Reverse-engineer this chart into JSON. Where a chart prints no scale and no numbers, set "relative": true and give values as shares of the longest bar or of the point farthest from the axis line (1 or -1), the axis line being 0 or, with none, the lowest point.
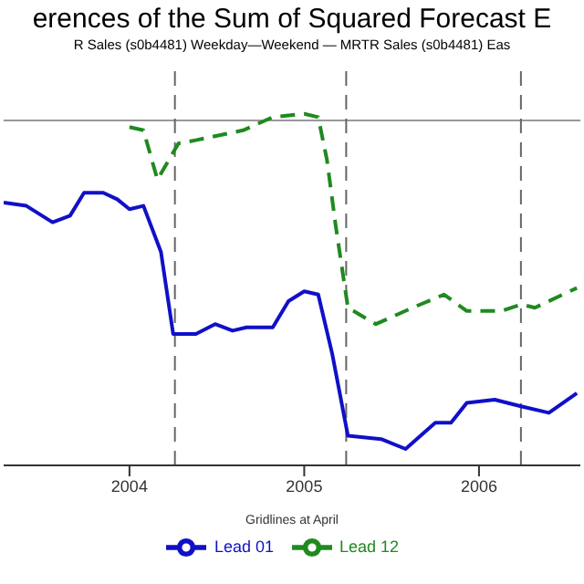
{
  "chart_data": {
    "type": "line",
    "title": "erences of the Sum of Squared Forecast E",
    "subtitle": "R Sales (s0b4481) Weekday—Weekend — MRTR Sales (s0b4481) Eas",
    "xlabel": "Gridlines at April",
    "relative": true,
    "xlim": [
      2003.28,
      2006.58
    ],
    "xticks": [
      2004,
      2005,
      2006
    ],
    "series": [
      {
        "name": "Lead 01",
        "color": "#1010c8",
        "line_style": "solid",
        "x": [
          2003.28,
          2003.41,
          2003.56,
          2003.66,
          2003.74,
          2003.85,
          2003.93,
          2004.0,
          2004.08,
          2004.18,
          2004.25,
          2004.38,
          2004.49,
          2004.59,
          2004.67,
          2004.82,
          2004.91,
          2005.0,
          2005.08,
          2005.16,
          2005.25,
          2005.44,
          2005.58,
          2005.75,
          2005.84,
          2005.93,
          2006.09,
          2006.24,
          2006.4,
          2006.56
        ],
        "values": [
          -0.25,
          -0.26,
          -0.31,
          -0.29,
          -0.22,
          -0.22,
          -0.24,
          -0.27,
          -0.26,
          -0.4,
          -0.65,
          -0.65,
          -0.62,
          -0.64,
          -0.63,
          -0.63,
          -0.55,
          -0.52,
          -0.53,
          -0.71,
          -0.96,
          -0.97,
          -1,
          -0.92,
          -0.92,
          -0.86,
          -0.85,
          -0.87,
          -0.89,
          -0.83
        ]
      },
      {
        "name": "Lead 12",
        "color": "#1f8a1f",
        "line_style": "dashed",
        "x": [
          2004.0,
          2004.08,
          2004.16,
          2004.28,
          2004.38,
          2004.65,
          2004.82,
          2005.0,
          2005.08,
          2005.13,
          2005.18,
          2005.25,
          2005.41,
          2005.62,
          2005.8,
          2005.93,
          2006.13,
          2006.24,
          2006.32,
          2006.56
        ],
        "values": [
          -0.02,
          -0.03,
          -0.18,
          -0.07,
          -0.06,
          -0.03,
          0.01,
          0.02,
          0.01,
          -0.12,
          -0.32,
          -0.57,
          -0.62,
          -0.57,
          -0.53,
          -0.58,
          -0.58,
          -0.56,
          -0.57,
          -0.51
        ]
      }
    ],
    "ref_lines": [
      {
        "axis": "y",
        "value": 0,
        "color": "#999999",
        "line_style": "solid"
      },
      {
        "axis": "x",
        "value": 2004.26,
        "color": "#666666",
        "line_style": "dashed"
      },
      {
        "axis": "x",
        "value": 2005.24,
        "color": "#666666",
        "line_style": "dashed"
      },
      {
        "axis": "x",
        "value": 2006.24,
        "color": "#666666",
        "line_style": "dashed"
      }
    ],
    "grid": false,
    "legend": "bottom",
    "marker": "none"
  }
}
